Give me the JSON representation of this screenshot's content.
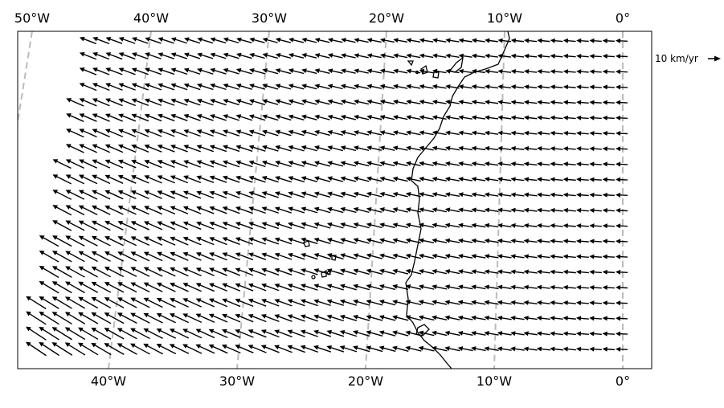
{
  "map": {
    "top_longitude_labels": [
      "50°W",
      "40°W",
      "30°W",
      "20°W",
      "10°W",
      "0°"
    ],
    "bottom_longitude_labels": [
      "40°W",
      "30°W",
      "20°W",
      "10°W",
      "0°"
    ],
    "scale_key": {
      "label": "10 km/yr"
    }
  }
}
